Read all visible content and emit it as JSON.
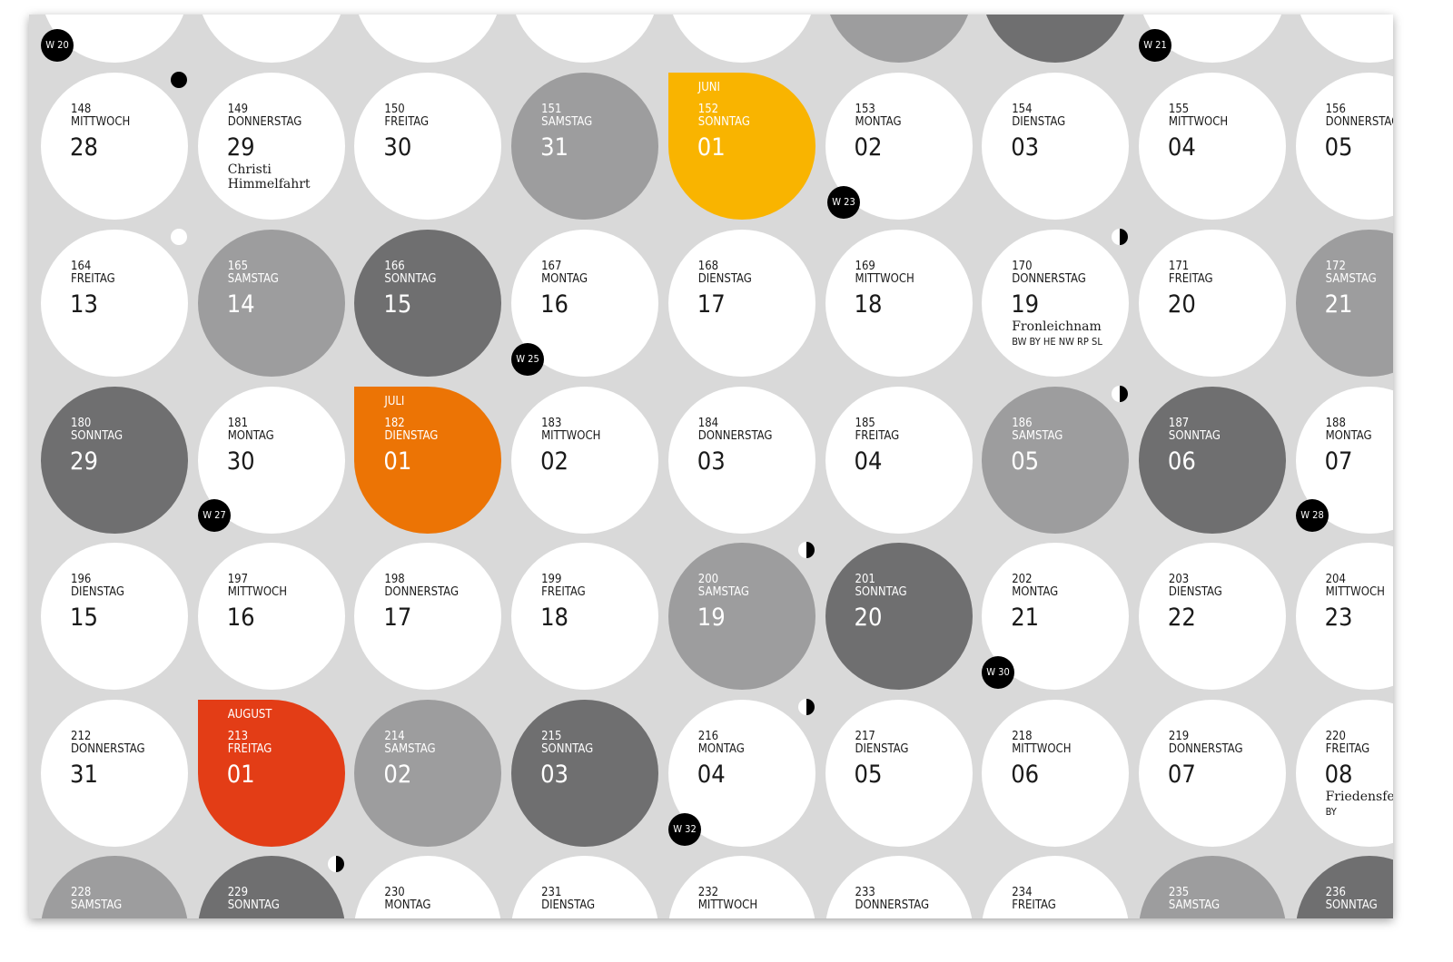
{
  "rows": [
    {
      "days": [
        {
          "doy": "148",
          "weekday": "MITTWOCH",
          "day": "28",
          "shade": "white"
        },
        {
          "doy": "149",
          "weekday": "DONNERSTAG",
          "day": "29",
          "shade": "white",
          "holiday": "Christi Himmelfahrt"
        },
        {
          "doy": "150",
          "weekday": "FREITAG",
          "day": "30",
          "shade": "white"
        },
        {
          "doy": "151",
          "weekday": "SAMSTAG",
          "day": "31",
          "shade": "light"
        },
        {
          "doy": "152",
          "weekday": "SONNTAG",
          "day": "01",
          "shade": "yellow",
          "month": "JUNI"
        },
        {
          "doy": "153",
          "weekday": "MONTAG",
          "day": "02",
          "shade": "white"
        },
        {
          "doy": "154",
          "weekday": "DIENSTAG",
          "day": "03",
          "shade": "white"
        },
        {
          "doy": "155",
          "weekday": "MITTWOCH",
          "day": "04",
          "shade": "white"
        },
        {
          "doy": "156",
          "weekday": "DONNERSTAG",
          "day": "05",
          "shade": "white"
        }
      ]
    },
    {
      "days": [
        {
          "doy": "164",
          "weekday": "FREITAG",
          "day": "13",
          "shade": "white"
        },
        {
          "doy": "165",
          "weekday": "SAMSTAG",
          "day": "14",
          "shade": "light"
        },
        {
          "doy": "166",
          "weekday": "SONNTAG",
          "day": "15",
          "shade": "dark"
        },
        {
          "doy": "167",
          "weekday": "MONTAG",
          "day": "16",
          "shade": "white"
        },
        {
          "doy": "168",
          "weekday": "DIENSTAG",
          "day": "17",
          "shade": "white"
        },
        {
          "doy": "169",
          "weekday": "MITTWOCH",
          "day": "18",
          "shade": "white"
        },
        {
          "doy": "170",
          "weekday": "DONNERSTAG",
          "day": "19",
          "shade": "white",
          "holiday": "Fronleichnam",
          "region": "BW BY HE NW RP SL"
        },
        {
          "doy": "171",
          "weekday": "FREITAG",
          "day": "20",
          "shade": "white"
        },
        {
          "doy": "172",
          "weekday": "SAMSTAG",
          "day": "21",
          "shade": "light"
        }
      ]
    },
    {
      "days": [
        {
          "doy": "180",
          "weekday": "SONNTAG",
          "day": "29",
          "shade": "dark"
        },
        {
          "doy": "181",
          "weekday": "MONTAG",
          "day": "30",
          "shade": "white"
        },
        {
          "doy": "182",
          "weekday": "DIENSTAG",
          "day": "01",
          "shade": "orange",
          "month": "JULI"
        },
        {
          "doy": "183",
          "weekday": "MITTWOCH",
          "day": "02",
          "shade": "white"
        },
        {
          "doy": "184",
          "weekday": "DONNERSTAG",
          "day": "03",
          "shade": "white"
        },
        {
          "doy": "185",
          "weekday": "FREITAG",
          "day": "04",
          "shade": "white"
        },
        {
          "doy": "186",
          "weekday": "SAMSTAG",
          "day": "05",
          "shade": "light"
        },
        {
          "doy": "187",
          "weekday": "SONNTAG",
          "day": "06",
          "shade": "dark"
        },
        {
          "doy": "188",
          "weekday": "MONTAG",
          "day": "07",
          "shade": "white"
        }
      ]
    },
    {
      "days": [
        {
          "doy": "196",
          "weekday": "DIENSTAG",
          "day": "15",
          "shade": "white"
        },
        {
          "doy": "197",
          "weekday": "MITTWOCH",
          "day": "16",
          "shade": "white"
        },
        {
          "doy": "198",
          "weekday": "DONNERSTAG",
          "day": "17",
          "shade": "white"
        },
        {
          "doy": "199",
          "weekday": "FREITAG",
          "day": "18",
          "shade": "white"
        },
        {
          "doy": "200",
          "weekday": "SAMSTAG",
          "day": "19",
          "shade": "light"
        },
        {
          "doy": "201",
          "weekday": "SONNTAG",
          "day": "20",
          "shade": "dark"
        },
        {
          "doy": "202",
          "weekday": "MONTAG",
          "day": "21",
          "shade": "white"
        },
        {
          "doy": "203",
          "weekday": "DIENSTAG",
          "day": "22",
          "shade": "white"
        },
        {
          "doy": "204",
          "weekday": "MITTWOCH",
          "day": "23",
          "shade": "white"
        }
      ]
    },
    {
      "days": [
        {
          "doy": "212",
          "weekday": "DONNERSTAG",
          "day": "31",
          "shade": "white"
        },
        {
          "doy": "213",
          "weekday": "FREITAG",
          "day": "01",
          "shade": "red",
          "month": "AUGUST"
        },
        {
          "doy": "214",
          "weekday": "SAMSTAG",
          "day": "02",
          "shade": "light"
        },
        {
          "doy": "215",
          "weekday": "SONNTAG",
          "day": "03",
          "shade": "dark"
        },
        {
          "doy": "216",
          "weekday": "MONTAG",
          "day": "04",
          "shade": "white"
        },
        {
          "doy": "217",
          "weekday": "DIENSTAG",
          "day": "05",
          "shade": "white"
        },
        {
          "doy": "218",
          "weekday": "MITTWOCH",
          "day": "06",
          "shade": "white"
        },
        {
          "doy": "219",
          "weekday": "DONNERSTAG",
          "day": "07",
          "shade": "white"
        },
        {
          "doy": "220",
          "weekday": "FREITAG",
          "day": "08",
          "shade": "white",
          "holiday": "Friedensfest",
          "region": "BY"
        }
      ]
    },
    {
      "days": [
        {
          "doy": "228",
          "weekday": "SAMSTAG",
          "shade": "light"
        },
        {
          "doy": "229",
          "weekday": "SONNTAG",
          "shade": "dark"
        },
        {
          "doy": "230",
          "weekday": "MONTAG",
          "shade": "white"
        },
        {
          "doy": "231",
          "weekday": "DIENSTAG",
          "shade": "white"
        },
        {
          "doy": "232",
          "weekday": "MITTWOCH",
          "shade": "white"
        },
        {
          "doy": "233",
          "weekday": "DONNERSTAG",
          "shade": "white"
        },
        {
          "doy": "234",
          "weekday": "FREITAG",
          "shade": "white"
        },
        {
          "doy": "235",
          "weekday": "SAMSTAG",
          "shade": "light"
        },
        {
          "doy": "236",
          "weekday": "SONNTAG",
          "shade": "dark"
        }
      ]
    }
  ],
  "top_row_shades": [
    "white",
    "white",
    "white",
    "white",
    "white",
    "light",
    "dark",
    "white",
    "white"
  ],
  "week_badges": [
    "W 20",
    "W 21",
    "W 23",
    "W 25",
    "W 27",
    "W 28",
    "W 30",
    "W 32"
  ],
  "moon_phases": [
    "new-moon-icon",
    "full-moon-icon",
    "half-moon-icon",
    "half-moon-icon",
    "half-moon-icon",
    "half-moon-icon",
    "half-moon-icon"
  ],
  "colors": {
    "background": "#d9d9d9",
    "weekend_light": "#9d9d9e",
    "weekend_dark": "#6f6f70",
    "juni": "#f9b400",
    "juli": "#ec7405",
    "august": "#e33d16"
  }
}
